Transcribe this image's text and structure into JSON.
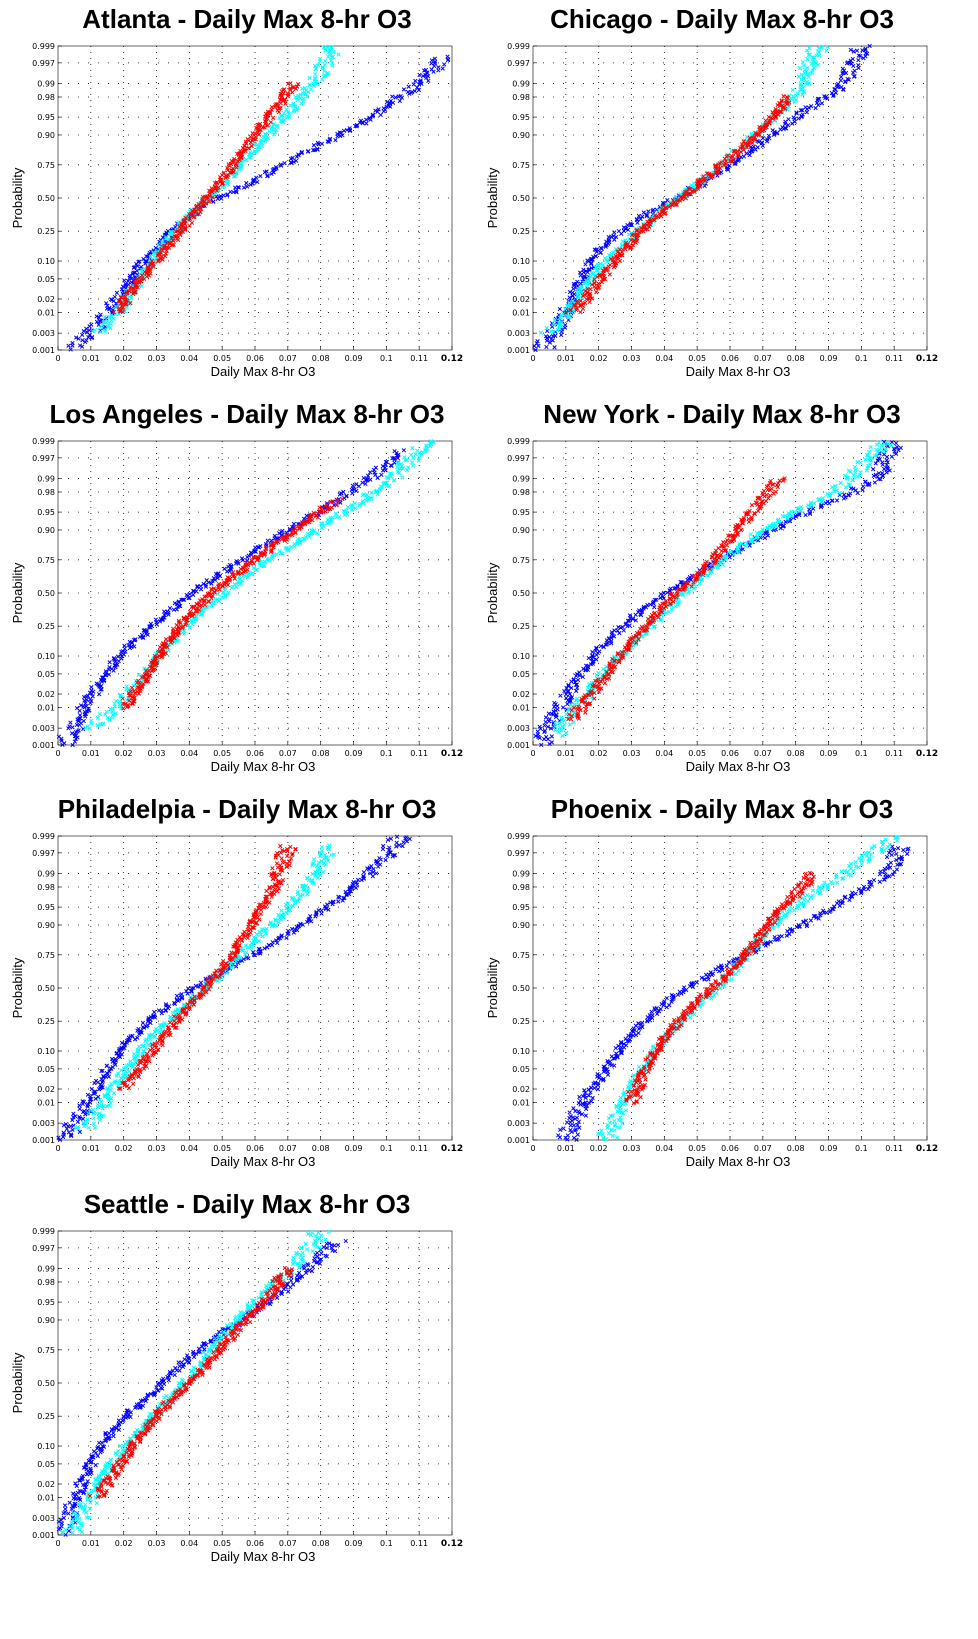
{
  "chart_data": [
    {
      "type": "scatter",
      "title": "Atlanta - Daily Max 8-hr O3",
      "xlabel": "Daily Max 8-hr O3",
      "ylabel": "Probability",
      "xlim": [
        0,
        0.12
      ],
      "y_scale": "normal-probability",
      "grid": true,
      "x_ticks": [
        "0",
        "0.01",
        "0.02",
        "0.03",
        "0.04",
        "0.05",
        "0.06",
        "0.07",
        "0.08",
        "0.09",
        "0.1",
        "0.11",
        "0.12"
      ],
      "y_ticks": [
        "0.001",
        "0.003",
        "0.01",
        "0.02",
        "0.05",
        "0.10",
        "0.25",
        "0.50",
        "0.75",
        "0.90",
        "0.95",
        "0.98",
        "0.99",
        "0.997",
        "0.999"
      ],
      "series": [
        {
          "color": "#0000ff",
          "x": [
            0.003,
            0.01,
            0.018,
            0.026,
            0.035,
            0.045,
            0.057,
            0.069,
            0.081,
            0.092,
            0.1,
            0.11,
            0.118
          ],
          "y": [
            0.001,
            0.003,
            0.02,
            0.1,
            0.25,
            0.45,
            0.6,
            0.75,
            0.87,
            0.93,
            0.97,
            0.99,
            0.998
          ]
        },
        {
          "color": "#00ffff",
          "x": [
            0.012,
            0.018,
            0.025,
            0.033,
            0.042,
            0.05,
            0.058,
            0.066,
            0.072,
            0.078,
            0.084
          ],
          "y": [
            0.003,
            0.01,
            0.05,
            0.2,
            0.4,
            0.6,
            0.8,
            0.92,
            0.97,
            0.99,
            0.999
          ]
        },
        {
          "color": "#ff0000",
          "x": [
            0.018,
            0.024,
            0.03,
            0.037,
            0.044,
            0.052,
            0.06,
            0.067,
            0.072
          ],
          "y": [
            0.01,
            0.04,
            0.1,
            0.25,
            0.45,
            0.7,
            0.9,
            0.97,
            0.99
          ]
        }
      ]
    },
    {
      "type": "scatter",
      "title": "Chicago - Daily Max 8-hr O3",
      "xlabel": "Daily Max 8-hr O3",
      "ylabel": "Probability",
      "xlim": [
        0,
        0.12
      ],
      "y_scale": "normal-probability",
      "grid": true,
      "x_ticks": [
        "0",
        "0.01",
        "0.02",
        "0.03",
        "0.04",
        "0.05",
        "0.06",
        "0.07",
        "0.08",
        "0.09",
        "0.1",
        "0.11",
        "0.12"
      ],
      "y_ticks": [
        "0.001",
        "0.003",
        "0.01",
        "0.02",
        "0.05",
        "0.10",
        "0.25",
        "0.50",
        "0.75",
        "0.90",
        "0.95",
        "0.98",
        "0.99",
        "0.997",
        "0.999"
      ],
      "series": [
        {
          "color": "#0000ff",
          "x": [
            0.003,
            0.008,
            0.013,
            0.02,
            0.03,
            0.04,
            0.052,
            0.064,
            0.075,
            0.085,
            0.095,
            0.1
          ],
          "y": [
            0.001,
            0.005,
            0.03,
            0.15,
            0.3,
            0.45,
            0.62,
            0.8,
            0.92,
            0.97,
            0.99,
            0.999
          ]
        },
        {
          "color": "#00ffff",
          "x": [
            0.005,
            0.01,
            0.015,
            0.022,
            0.032,
            0.042,
            0.052,
            0.062,
            0.072,
            0.08,
            0.087
          ],
          "y": [
            0.003,
            0.01,
            0.03,
            0.1,
            0.25,
            0.45,
            0.65,
            0.83,
            0.94,
            0.98,
            0.999
          ]
        },
        {
          "color": "#ff0000",
          "x": [
            0.012,
            0.018,
            0.025,
            0.034,
            0.044,
            0.054,
            0.064,
            0.072,
            0.078
          ],
          "y": [
            0.01,
            0.03,
            0.1,
            0.28,
            0.48,
            0.68,
            0.85,
            0.94,
            0.98
          ]
        }
      ]
    },
    {
      "type": "scatter",
      "title": "Los Angeles - Daily Max 8-hr O3",
      "xlabel": "Daily Max 8-hr O3",
      "ylabel": "Probability",
      "xlim": [
        0,
        0.12
      ],
      "y_scale": "normal-probability",
      "grid": true,
      "x_ticks": [
        "0",
        "0.01",
        "0.02",
        "0.03",
        "0.04",
        "0.05",
        "0.06",
        "0.07",
        "0.08",
        "0.09",
        "0.1",
        "0.11",
        "0.12"
      ],
      "y_ticks": [
        "0.001",
        "0.003",
        "0.01",
        "0.02",
        "0.05",
        "0.10",
        "0.25",
        "0.50",
        "0.75",
        "0.90",
        "0.95",
        "0.98",
        "0.99",
        "0.997",
        "0.999"
      ],
      "series": [
        {
          "color": "#0000ff",
          "x": [
            0.002,
            0.006,
            0.012,
            0.02,
            0.03,
            0.04,
            0.05,
            0.06,
            0.07,
            0.082,
            0.095,
            0.105
          ],
          "y": [
            0.001,
            0.005,
            0.03,
            0.12,
            0.28,
            0.48,
            0.66,
            0.8,
            0.9,
            0.96,
            0.99,
            0.998
          ]
        },
        {
          "color": "#00ffff",
          "x": [
            0.01,
            0.018,
            0.026,
            0.034,
            0.043,
            0.053,
            0.064,
            0.076,
            0.09,
            0.102,
            0.112
          ],
          "y": [
            0.003,
            0.01,
            0.05,
            0.15,
            0.33,
            0.55,
            0.75,
            0.88,
            0.96,
            0.99,
            0.999
          ]
        },
        {
          "color": "#ff0000",
          "x": [
            0.02,
            0.026,
            0.032,
            0.038,
            0.046,
            0.056,
            0.066,
            0.076,
            0.085
          ],
          "y": [
            0.01,
            0.04,
            0.12,
            0.28,
            0.48,
            0.68,
            0.84,
            0.93,
            0.97
          ]
        }
      ]
    },
    {
      "type": "scatter",
      "title": "New York - Daily Max 8-hr O3",
      "xlabel": "Daily Max 8-hr O3",
      "ylabel": "Probability",
      "xlim": [
        0,
        0.12
      ],
      "y_scale": "normal-probability",
      "grid": true,
      "x_ticks": [
        "0",
        "0.01",
        "0.02",
        "0.03",
        "0.04",
        "0.05",
        "0.06",
        "0.07",
        "0.08",
        "0.09",
        "0.1",
        "0.11",
        "0.12"
      ],
      "y_ticks": [
        "0.001",
        "0.003",
        "0.01",
        "0.02",
        "0.05",
        "0.10",
        "0.25",
        "0.50",
        "0.75",
        "0.90",
        "0.95",
        "0.98",
        "0.99",
        "0.997",
        "0.999"
      ],
      "series": [
        {
          "color": "#0000ff",
          "x": [
            0.002,
            0.006,
            0.012,
            0.02,
            0.03,
            0.042,
            0.055,
            0.068,
            0.08,
            0.092,
            0.105,
            0.11
          ],
          "y": [
            0.001,
            0.005,
            0.03,
            0.12,
            0.3,
            0.52,
            0.72,
            0.86,
            0.94,
            0.97,
            0.99,
            0.999
          ]
        },
        {
          "color": "#00ffff",
          "x": [
            0.007,
            0.013,
            0.02,
            0.028,
            0.038,
            0.048,
            0.058,
            0.068,
            0.08,
            0.092,
            0.108
          ],
          "y": [
            0.002,
            0.01,
            0.04,
            0.12,
            0.3,
            0.55,
            0.75,
            0.88,
            0.95,
            0.98,
            0.999
          ]
        },
        {
          "color": "#ff0000",
          "x": [
            0.012,
            0.018,
            0.025,
            0.033,
            0.042,
            0.052,
            0.06,
            0.068,
            0.075
          ],
          "y": [
            0.005,
            0.02,
            0.08,
            0.22,
            0.45,
            0.68,
            0.86,
            0.96,
            0.99
          ]
        }
      ]
    },
    {
      "type": "scatter",
      "title": "Philadelpia - Daily Max 8-hr O3",
      "xlabel": "Daily Max 8-hr O3",
      "ylabel": "Probability",
      "xlim": [
        0,
        0.12
      ],
      "y_scale": "normal-probability",
      "grid": true,
      "x_ticks": [
        "0",
        "0.01",
        "0.02",
        "0.03",
        "0.04",
        "0.05",
        "0.06",
        "0.07",
        "0.08",
        "0.09",
        "0.1",
        "0.11",
        "0.12"
      ],
      "y_ticks": [
        "0.001",
        "0.003",
        "0.01",
        "0.02",
        "0.05",
        "0.10",
        "0.25",
        "0.50",
        "0.75",
        "0.90",
        "0.95",
        "0.98",
        "0.99",
        "0.997",
        "0.999"
      ],
      "series": [
        {
          "color": "#0000ff",
          "x": [
            0.002,
            0.007,
            0.013,
            0.02,
            0.03,
            0.04,
            0.05,
            0.062,
            0.074,
            0.085,
            0.095,
            0.105
          ],
          "y": [
            0.001,
            0.005,
            0.03,
            0.12,
            0.3,
            0.48,
            0.62,
            0.78,
            0.9,
            0.96,
            0.99,
            0.999
          ]
        },
        {
          "color": "#00ffff",
          "x": [
            0.008,
            0.014,
            0.02,
            0.028,
            0.038,
            0.048,
            0.058,
            0.068,
            0.076,
            0.083
          ],
          "y": [
            0.002,
            0.01,
            0.04,
            0.15,
            0.35,
            0.58,
            0.8,
            0.93,
            0.98,
            0.998
          ]
        },
        {
          "color": "#ff0000",
          "x": [
            0.02,
            0.025,
            0.03,
            0.037,
            0.045,
            0.053,
            0.06,
            0.066,
            0.07
          ],
          "y": [
            0.02,
            0.05,
            0.12,
            0.28,
            0.5,
            0.75,
            0.92,
            0.98,
            0.998
          ]
        }
      ]
    },
    {
      "type": "scatter",
      "title": "Phoenix - Daily Max 8-hr O3",
      "xlabel": "Daily Max 8-hr O3",
      "ylabel": "Probability",
      "xlim": [
        0,
        0.12
      ],
      "y_scale": "normal-probability",
      "grid": true,
      "x_ticks": [
        "0",
        "0.01",
        "0.02",
        "0.03",
        "0.04",
        "0.05",
        "0.06",
        "0.07",
        "0.08",
        "0.09",
        "0.1",
        "0.11",
        "0.12"
      ],
      "y_ticks": [
        "0.001",
        "0.003",
        "0.01",
        "0.02",
        "0.05",
        "0.10",
        "0.25",
        "0.50",
        "0.75",
        "0.90",
        "0.95",
        "0.98",
        "0.99",
        "0.997",
        "0.999"
      ],
      "series": [
        {
          "color": "#0000ff",
          "x": [
            0.01,
            0.015,
            0.02,
            0.026,
            0.034,
            0.044,
            0.055,
            0.068,
            0.082,
            0.095,
            0.108,
            0.112
          ],
          "y": [
            0.001,
            0.01,
            0.03,
            0.1,
            0.25,
            0.45,
            0.62,
            0.78,
            0.9,
            0.96,
            0.99,
            0.998
          ]
        },
        {
          "color": "#00ffff",
          "x": [
            0.022,
            0.028,
            0.033,
            0.04,
            0.05,
            0.06,
            0.068,
            0.076,
            0.085,
            0.095,
            0.11
          ],
          "y": [
            0.001,
            0.01,
            0.05,
            0.15,
            0.35,
            0.6,
            0.82,
            0.93,
            0.97,
            0.99,
            0.999
          ]
        },
        {
          "color": "#ff0000",
          "x": [
            0.03,
            0.034,
            0.04,
            0.048,
            0.058,
            0.066,
            0.073,
            0.08,
            0.085
          ],
          "y": [
            0.01,
            0.05,
            0.15,
            0.35,
            0.58,
            0.78,
            0.92,
            0.97,
            0.99
          ]
        }
      ]
    },
    {
      "type": "scatter",
      "title": "Seattle - Daily Max 8-hr O3",
      "xlabel": "Daily Max 8-hr O3",
      "ylabel": "Probability",
      "xlim": [
        0,
        0.12
      ],
      "y_scale": "normal-probability",
      "grid": true,
      "x_ticks": [
        "0",
        "0.01",
        "0.02",
        "0.03",
        "0.04",
        "0.05",
        "0.06",
        "0.07",
        "0.08",
        "0.09",
        "0.1",
        "0.11",
        "0.12"
      ],
      "y_ticks": [
        "0.001",
        "0.003",
        "0.01",
        "0.02",
        "0.05",
        "0.10",
        "0.25",
        "0.50",
        "0.75",
        "0.90",
        "0.95",
        "0.98",
        "0.99",
        "0.997",
        "0.999"
      ],
      "series": [
        {
          "color": "#0000ff",
          "x": [
            0.001,
            0.004,
            0.008,
            0.014,
            0.022,
            0.03,
            0.038,
            0.046,
            0.056,
            0.066,
            0.076,
            0.085
          ],
          "y": [
            0.001,
            0.005,
            0.03,
            0.12,
            0.28,
            0.45,
            0.65,
            0.8,
            0.9,
            0.96,
            0.99,
            0.998
          ]
        },
        {
          "color": "#00ffff",
          "x": [
            0.004,
            0.01,
            0.016,
            0.024,
            0.032,
            0.04,
            0.048,
            0.056,
            0.064,
            0.072,
            0.08
          ],
          "y": [
            0.001,
            0.01,
            0.05,
            0.15,
            0.33,
            0.55,
            0.78,
            0.92,
            0.97,
            0.99,
            0.999
          ]
        },
        {
          "color": "#ff0000",
          "x": [
            0.012,
            0.018,
            0.024,
            0.031,
            0.04,
            0.048,
            0.056,
            0.064,
            0.07
          ],
          "y": [
            0.01,
            0.04,
            0.12,
            0.28,
            0.5,
            0.72,
            0.88,
            0.96,
            0.99
          ]
        }
      ]
    }
  ]
}
